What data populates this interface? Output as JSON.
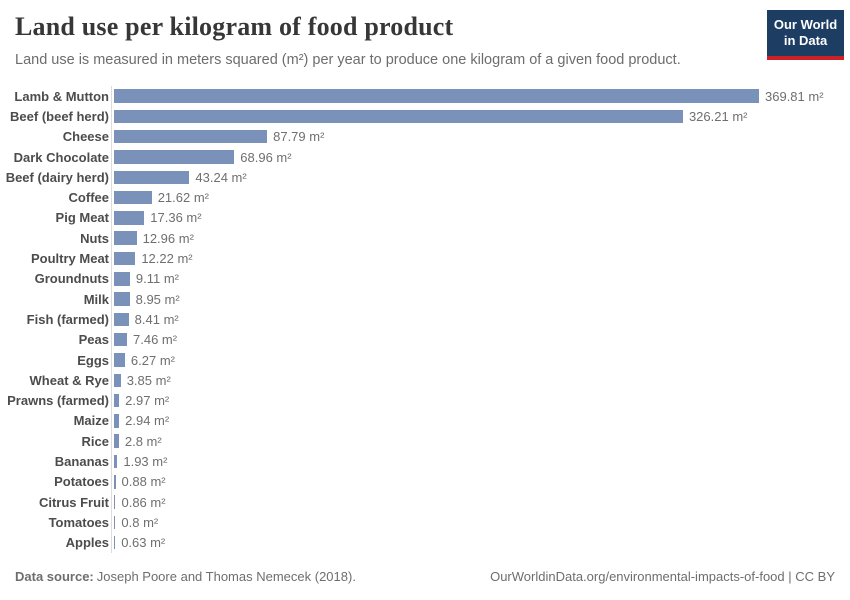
{
  "header": {
    "title": "Land use per kilogram of food product",
    "subtitle": "Land use is measured in meters squared (m²) per year to produce one kilogram of a given food product.",
    "logo": {
      "line1": "Our World",
      "line2": "in Data"
    }
  },
  "chart_data": {
    "type": "bar",
    "orientation": "horizontal",
    "title": "Land use per kilogram of food product",
    "xlabel": "",
    "ylabel": "",
    "unit": "m²",
    "xlim": [
      0,
      369.81
    ],
    "grid": false,
    "legend": "none",
    "bar_color": "#7a92ba",
    "categories": [
      "Lamb & Mutton",
      "Beef (beef herd)",
      "Cheese",
      "Dark Chocolate",
      "Beef (dairy herd)",
      "Coffee",
      "Pig Meat",
      "Nuts",
      "Poultry Meat",
      "Groundnuts",
      "Milk",
      "Fish (farmed)",
      "Peas",
      "Eggs",
      "Wheat & Rye",
      "Prawns (farmed)",
      "Maize",
      "Rice",
      "Bananas",
      "Potatoes",
      "Citrus Fruit",
      "Tomatoes",
      "Apples"
    ],
    "values": [
      369.81,
      326.21,
      87.79,
      68.96,
      43.24,
      21.62,
      17.36,
      12.96,
      12.22,
      9.11,
      8.95,
      8.41,
      7.46,
      6.27,
      3.85,
      2.97,
      2.94,
      2.8,
      1.93,
      0.88,
      0.86,
      0.8,
      0.63
    ],
    "value_labels": [
      "369.81 m²",
      "326.21 m²",
      "87.79 m²",
      "68.96 m²",
      "43.24 m²",
      "21.62 m²",
      "17.36 m²",
      "12.96 m²",
      "12.22 m²",
      "9.11 m²",
      "8.95 m²",
      "8.41 m²",
      "7.46 m²",
      "6.27 m²",
      "3.85 m²",
      "2.97 m²",
      "2.94 m²",
      "2.8 m²",
      "1.93 m²",
      "0.88 m²",
      "0.86 m²",
      "0.8 m²",
      "0.63 m²"
    ]
  },
  "footer": {
    "datasource_label": "Data source:",
    "datasource_text": "Joseph Poore and Thomas Nemecek (2018).",
    "url": "OurWorldinData.org/environmental-impacts-of-food",
    "separator": " | ",
    "license": "CC BY"
  }
}
